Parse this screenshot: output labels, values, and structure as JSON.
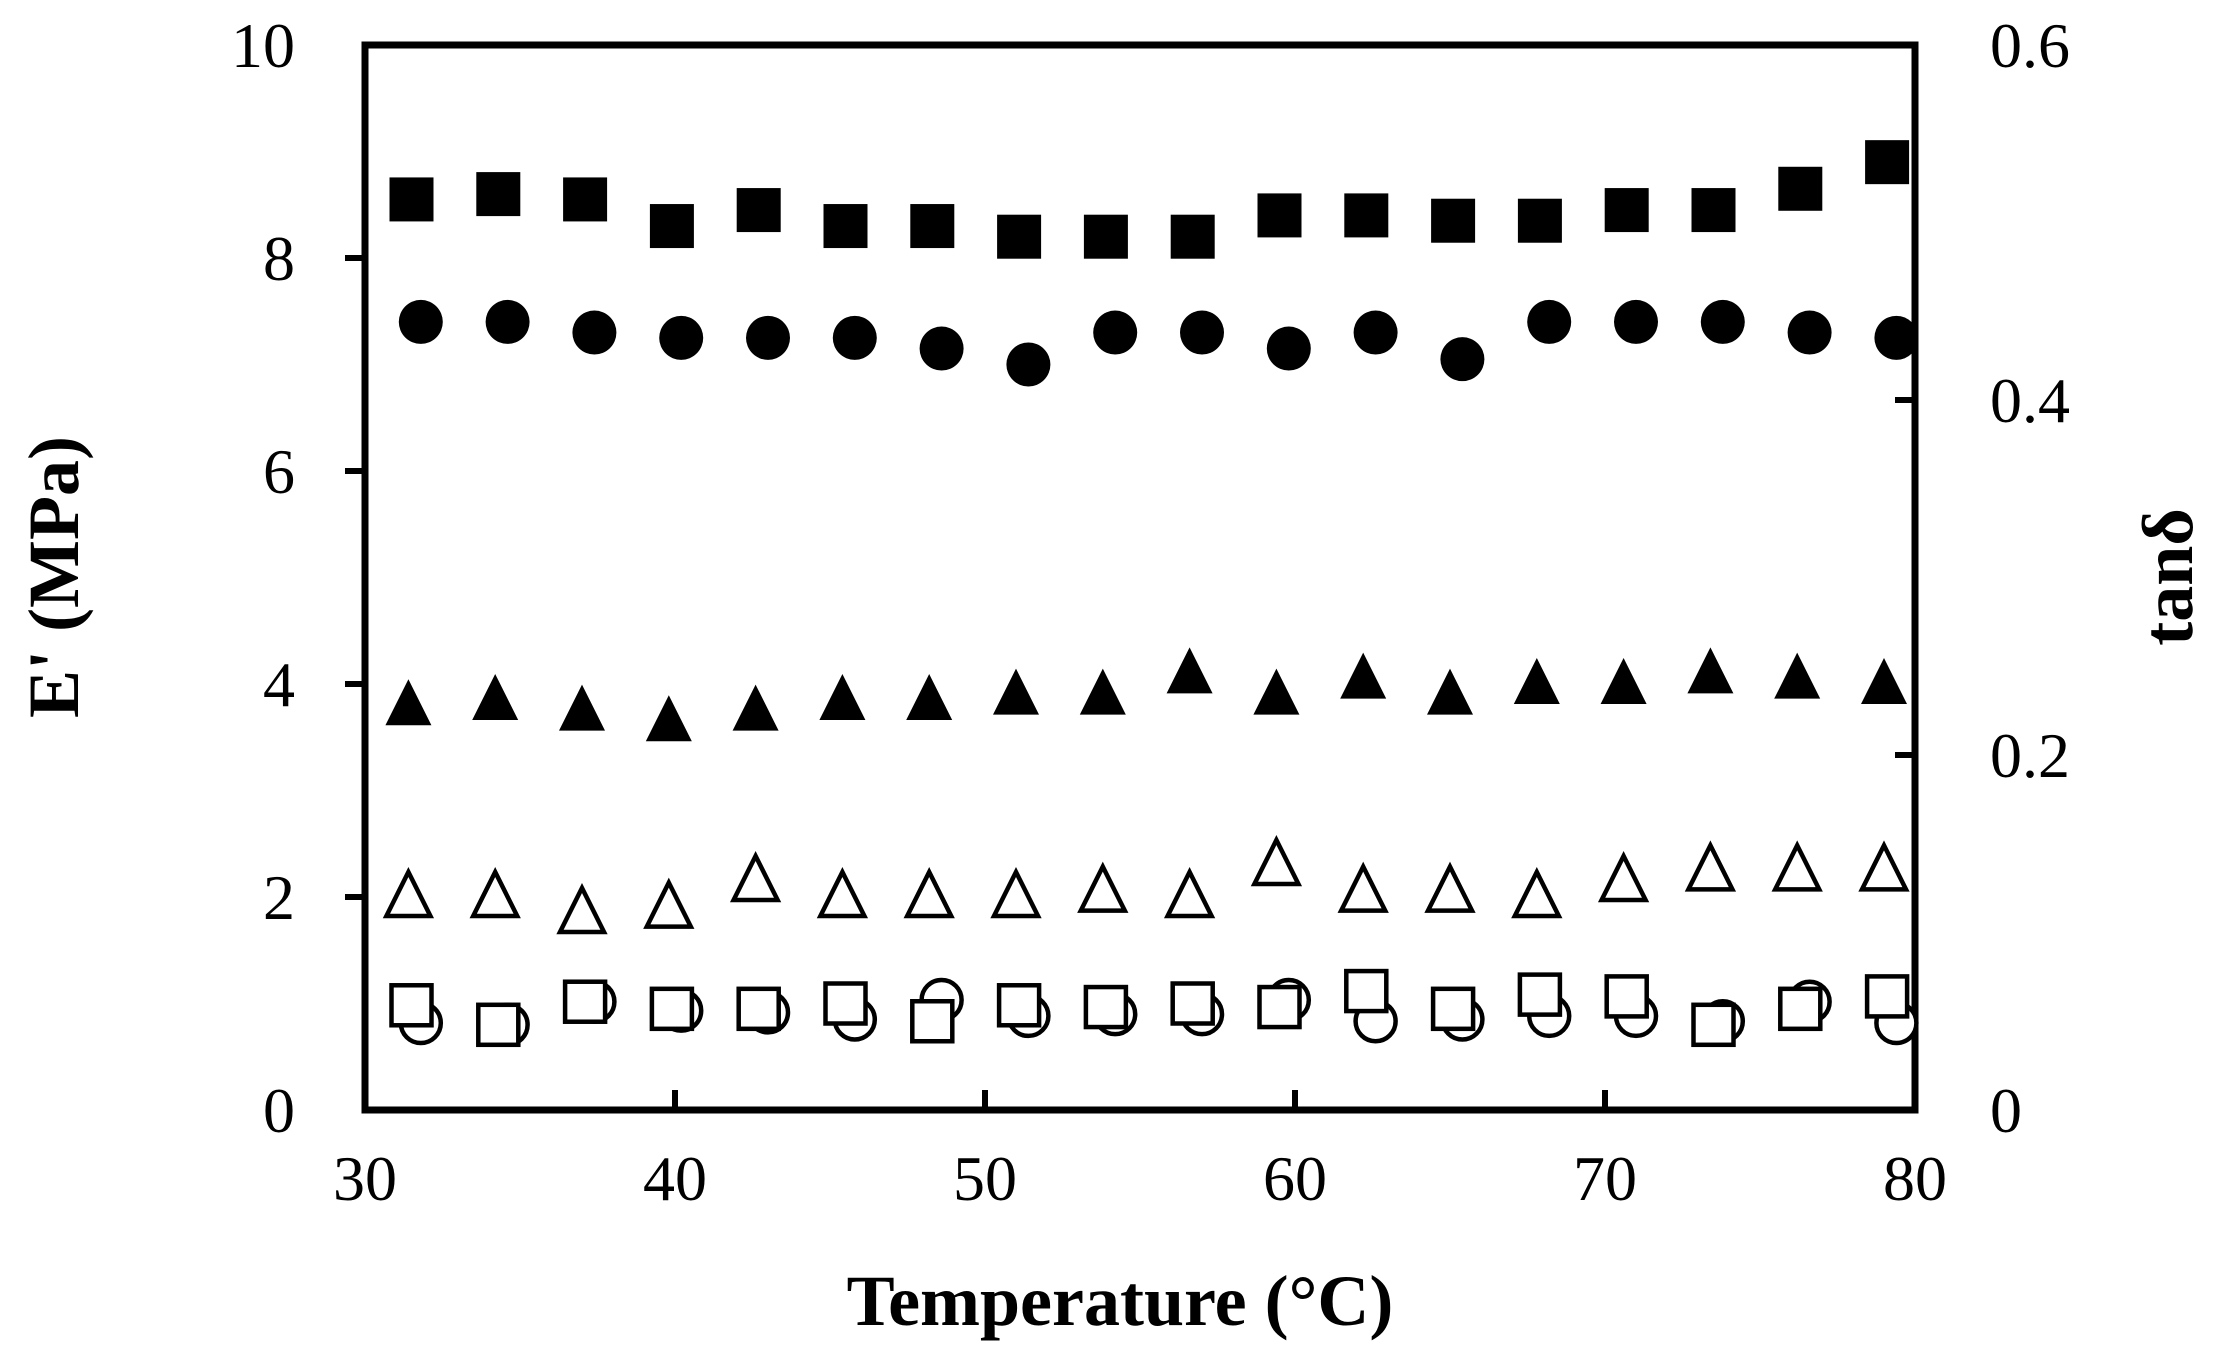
{
  "chart_data": {
    "type": "scatter",
    "xlabel": "Temperature (°C)",
    "ylabel": "E' (MPa)",
    "y2label": "tanδ",
    "xlim": [
      30,
      80
    ],
    "ylim": [
      0,
      10
    ],
    "y2lim": [
      0,
      0.6
    ],
    "x_ticks": [
      "30",
      "40",
      "50",
      "60",
      "70",
      "80"
    ],
    "y_ticks": [
      "0",
      "2",
      "4",
      "6",
      "8",
      "10"
    ],
    "y2_ticks": [
      "0",
      "0.2",
      "0.4",
      "0.6"
    ],
    "grid": false,
    "series": [
      {
        "marker": "square-filled",
        "axis": "left",
        "points": [
          [
            31.5,
            8.55
          ],
          [
            34.3,
            8.6
          ],
          [
            37.1,
            8.55
          ],
          [
            39.9,
            8.3
          ],
          [
            42.7,
            8.45
          ],
          [
            45.5,
            8.3
          ],
          [
            48.3,
            8.3
          ],
          [
            51.1,
            8.2
          ],
          [
            53.9,
            8.2
          ],
          [
            56.7,
            8.2
          ],
          [
            59.5,
            8.4
          ],
          [
            62.3,
            8.4
          ],
          [
            65.1,
            8.35
          ],
          [
            67.9,
            8.35
          ],
          [
            70.7,
            8.45
          ],
          [
            73.5,
            8.45
          ],
          [
            76.3,
            8.65
          ],
          [
            79.1,
            8.9
          ]
        ]
      },
      {
        "marker": "circle-filled",
        "axis": "left",
        "points": [
          [
            31.8,
            7.4
          ],
          [
            34.6,
            7.4
          ],
          [
            37.4,
            7.3
          ],
          [
            40.2,
            7.25
          ],
          [
            43.0,
            7.25
          ],
          [
            45.8,
            7.25
          ],
          [
            48.6,
            7.15
          ],
          [
            51.4,
            7.0
          ],
          [
            54.2,
            7.3
          ],
          [
            57.0,
            7.3
          ],
          [
            59.8,
            7.15
          ],
          [
            62.6,
            7.3
          ],
          [
            65.4,
            7.05
          ],
          [
            68.2,
            7.4
          ],
          [
            71.0,
            7.4
          ],
          [
            73.8,
            7.4
          ],
          [
            76.6,
            7.3
          ],
          [
            79.4,
            7.25
          ]
        ]
      },
      {
        "marker": "triangle-filled",
        "axis": "left",
        "points": [
          [
            31.4,
            3.8
          ],
          [
            34.2,
            3.85
          ],
          [
            37.0,
            3.75
          ],
          [
            39.8,
            3.65
          ],
          [
            42.6,
            3.75
          ],
          [
            45.4,
            3.85
          ],
          [
            48.2,
            3.85
          ],
          [
            51.0,
            3.9
          ],
          [
            53.8,
            3.9
          ],
          [
            56.6,
            4.1
          ],
          [
            59.4,
            3.9
          ],
          [
            62.2,
            4.05
          ],
          [
            65.0,
            3.9
          ],
          [
            67.8,
            4.0
          ],
          [
            70.6,
            4.0
          ],
          [
            73.4,
            4.1
          ],
          [
            76.2,
            4.05
          ],
          [
            79.0,
            4.0
          ]
        ]
      },
      {
        "marker": "triangle-open",
        "axis": "left",
        "points": [
          [
            31.4,
            2.0
          ],
          [
            34.2,
            2.0
          ],
          [
            37.0,
            1.85
          ],
          [
            39.8,
            1.9
          ],
          [
            42.6,
            2.15
          ],
          [
            45.4,
            2.0
          ],
          [
            48.2,
            2.0
          ],
          [
            51.0,
            2.0
          ],
          [
            53.8,
            2.05
          ],
          [
            56.6,
            2.0
          ],
          [
            59.4,
            2.3
          ],
          [
            62.2,
            2.05
          ],
          [
            65.0,
            2.05
          ],
          [
            67.8,
            2.0
          ],
          [
            70.6,
            2.15
          ],
          [
            73.4,
            2.25
          ],
          [
            76.2,
            2.25
          ],
          [
            79.0,
            2.25
          ]
        ]
      },
      {
        "marker": "circle-open",
        "axis": "right",
        "points": [
          [
            31.8,
            0.049
          ],
          [
            34.6,
            0.048
          ],
          [
            37.4,
            0.061
          ],
          [
            40.2,
            0.056
          ],
          [
            43.0,
            0.055
          ],
          [
            45.8,
            0.051
          ],
          [
            48.6,
            0.062
          ],
          [
            51.4,
            0.053
          ],
          [
            54.2,
            0.054
          ],
          [
            57.0,
            0.054
          ],
          [
            59.8,
            0.062
          ],
          [
            62.6,
            0.05
          ],
          [
            65.4,
            0.051
          ],
          [
            68.2,
            0.053
          ],
          [
            71.0,
            0.053
          ],
          [
            73.8,
            0.05
          ],
          [
            76.6,
            0.061
          ],
          [
            79.4,
            0.049
          ]
        ]
      },
      {
        "marker": "square-open",
        "axis": "right",
        "points": [
          [
            31.5,
            0.059
          ],
          [
            34.3,
            0.048
          ],
          [
            37.1,
            0.061
          ],
          [
            39.9,
            0.057
          ],
          [
            42.7,
            0.057
          ],
          [
            45.5,
            0.06
          ],
          [
            48.3,
            0.05
          ],
          [
            51.1,
            0.059
          ],
          [
            53.9,
            0.058
          ],
          [
            56.7,
            0.06
          ],
          [
            59.5,
            0.058
          ],
          [
            62.3,
            0.067
          ],
          [
            65.1,
            0.057
          ],
          [
            67.9,
            0.065
          ],
          [
            70.7,
            0.064
          ],
          [
            73.5,
            0.048
          ],
          [
            76.3,
            0.057
          ],
          [
            79.1,
            0.064
          ]
        ]
      }
    ]
  }
}
